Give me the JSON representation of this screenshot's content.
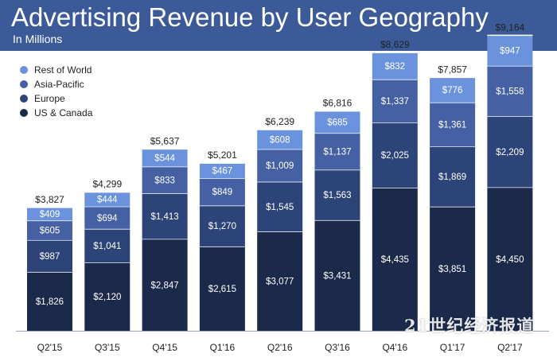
{
  "chart_data": {
    "type": "bar",
    "stacked": true,
    "title": "Advertising Revenue by User Geography",
    "subtitle": "In Millions",
    "categories": [
      "Q2'15",
      "Q3'15",
      "Q4'15",
      "Q1'16",
      "Q2'16",
      "Q3'16",
      "Q4'16",
      "Q1'17",
      "Q2'17"
    ],
    "series": [
      {
        "name": "US & Canada",
        "color": "#1b2a4a",
        "values": [
          1826,
          2120,
          2847,
          2615,
          3077,
          3431,
          4435,
          3851,
          4450
        ],
        "labels": [
          "$1,826",
          "$2,120",
          "$2,847",
          "$2,615",
          "$3,077",
          "$3,431",
          "$4,435",
          "$3,851",
          "$4,450"
        ]
      },
      {
        "name": "Europe",
        "color": "#2c4477",
        "values": [
          987,
          1041,
          1413,
          1270,
          1545,
          1563,
          2025,
          1869,
          2209
        ],
        "labels": [
          "$987",
          "$1,041",
          "$1,413",
          "$1,270",
          "$1,545",
          "$1,563",
          "$2,025",
          "$1,869",
          "$2,209"
        ]
      },
      {
        "name": "Asia-Pacific",
        "color": "#4561a4",
        "values": [
          605,
          694,
          833,
          849,
          1009,
          1137,
          1337,
          1361,
          1558
        ],
        "labels": [
          "$605",
          "$694",
          "$833",
          "$849",
          "$1,009",
          "$1,137",
          "$1,337",
          "$1,361",
          "$1,558"
        ]
      },
      {
        "name": "Rest of World",
        "color": "#6b93dd",
        "values": [
          409,
          444,
          544,
          467,
          608,
          685,
          832,
          776,
          947
        ],
        "labels": [
          "$409",
          "$444",
          "$544",
          "$467",
          "$608",
          "$685",
          "$832",
          "$776",
          "$947"
        ]
      }
    ],
    "totals": [
      3827,
      4299,
      5637,
      5201,
      6239,
      6816,
      8629,
      7857,
      9164
    ],
    "total_labels": [
      "$3,827",
      "$4,299",
      "$5,637",
      "$5,201",
      "$6,239",
      "$6,816",
      "$8,629",
      "$7,857",
      "$9,164"
    ],
    "legend_order": [
      "Rest of World",
      "Asia-Pacific",
      "Europe",
      "US & Canada"
    ],
    "legend_position": "top-left",
    "ylim": [
      0,
      9500
    ],
    "grid": false
  },
  "watermark": "21世纪经济报道"
}
